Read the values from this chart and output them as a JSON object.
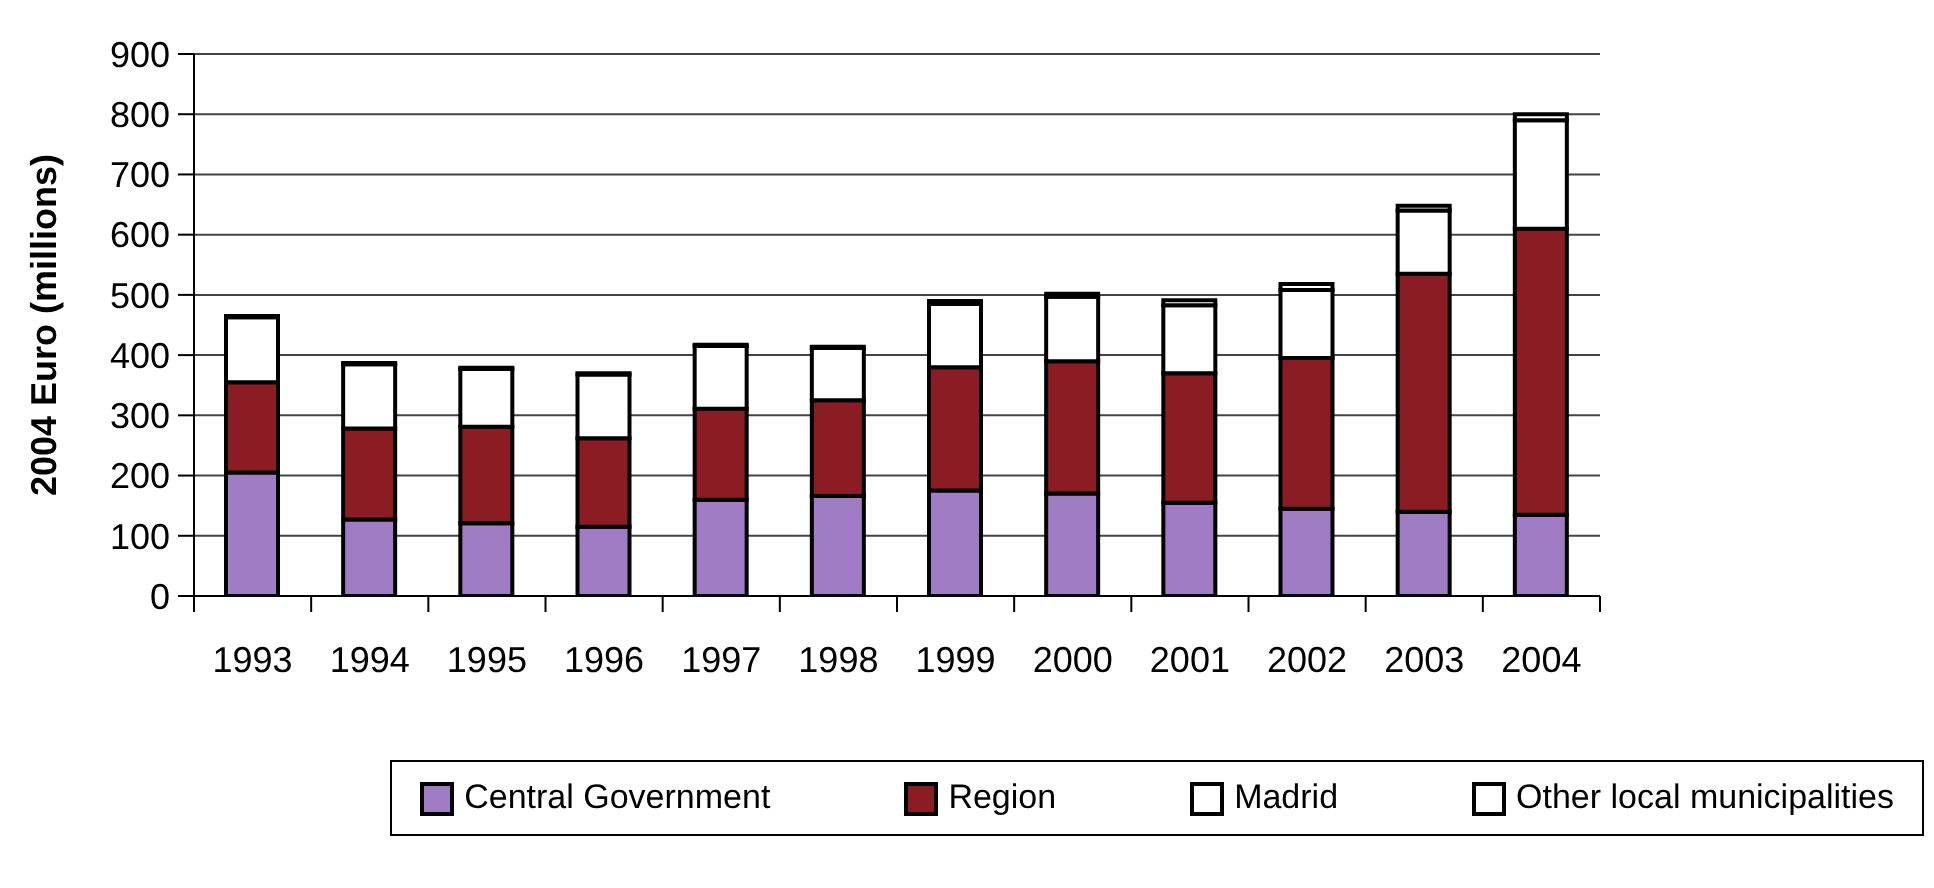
{
  "chart_data": {
    "type": "bar",
    "stacked": true,
    "ylabel": "2004 Euro (millions)",
    "categories": [
      "1993",
      "1994",
      "1995",
      "1996",
      "1997",
      "1998",
      "1999",
      "2000",
      "2001",
      "2002",
      "2003",
      "2004"
    ],
    "series": [
      {
        "name": "Central Government",
        "color": "#a07cc5",
        "values": [
          205,
          127,
          121,
          115,
          160,
          166,
          175,
          170,
          155,
          145,
          140,
          135
        ]
      },
      {
        "name": "Region",
        "color": "#8c1c24",
        "values": [
          150,
          151,
          160,
          147,
          151,
          159,
          205,
          220,
          215,
          250,
          395,
          475
        ]
      },
      {
        "name": "Madrid",
        "color": "#ffffff",
        "values": [
          108,
          107,
          96,
          106,
          104,
          87,
          105,
          107,
          113,
          113,
          105,
          180
        ]
      },
      {
        "name": "Other local municipalities",
        "color": "#ffffff",
        "values": [
          2,
          2,
          2,
          2,
          2,
          2,
          5,
          5,
          8,
          10,
          8,
          10
        ]
      }
    ],
    "ylim": [
      0,
      900
    ],
    "yticks": [
      0,
      100,
      200,
      300,
      400,
      500,
      600,
      700,
      800,
      900
    ],
    "grid": "y",
    "legend": "bottom right"
  }
}
